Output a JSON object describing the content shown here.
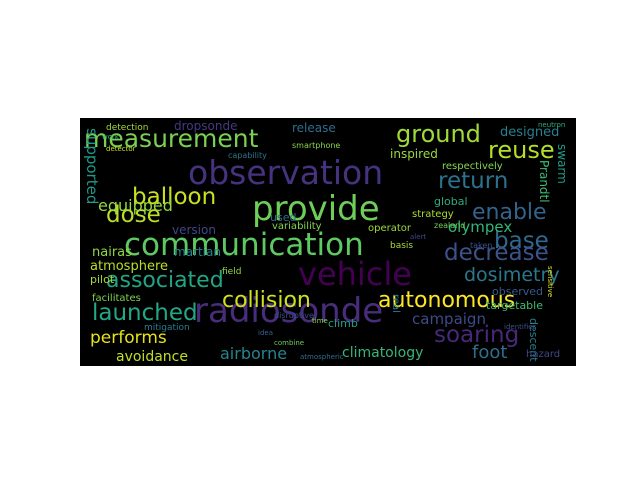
{
  "figure": {
    "background": "#000000",
    "words": [
      {
        "text": "measurement",
        "color": "#7ad151"
      },
      {
        "text": "observation",
        "color": "#46327e"
      },
      {
        "text": "provide",
        "color": "#6ece58"
      },
      {
        "text": "communication",
        "color": "#5ec962"
      },
      {
        "text": "vehicle",
        "color": "#440154"
      },
      {
        "text": "radiosonde",
        "color": "#472d7b"
      },
      {
        "text": "ground",
        "color": "#a0da39"
      },
      {
        "text": "reuse",
        "color": "#b5de2b"
      },
      {
        "text": "return",
        "color": "#2c728e"
      },
      {
        "text": "enable",
        "color": "#33638d"
      },
      {
        "text": "balloon",
        "color": "#c8e020"
      },
      {
        "text": "dose",
        "color": "#bddf26"
      },
      {
        "text": "base",
        "color": "#31688e"
      },
      {
        "text": "decrease",
        "color": "#3b528b"
      },
      {
        "text": "associated",
        "color": "#21a685"
      },
      {
        "text": "dosimetry",
        "color": "#2a788e"
      },
      {
        "text": "autonomous",
        "color": "#fde725"
      },
      {
        "text": "collision",
        "color": "#d0e11c"
      },
      {
        "text": "launched",
        "color": "#22a884"
      },
      {
        "text": "soaring",
        "color": "#482878"
      },
      {
        "text": "campaign",
        "color": "#3e4a89"
      },
      {
        "text": "performs",
        "color": "#e5e419"
      },
      {
        "text": "foot",
        "color": "#2d708e"
      },
      {
        "text": "airborne",
        "color": "#25858e"
      },
      {
        "text": "climatology",
        "color": "#35b779"
      },
      {
        "text": "avoidance",
        "color": "#c2df23"
      },
      {
        "text": "supported",
        "color": "#1f9a8a"
      },
      {
        "text": "equipped",
        "color": "#95d840"
      },
      {
        "text": "atmosphere",
        "color": "#b8de29"
      },
      {
        "text": "olympex",
        "color": "#31b57b"
      },
      {
        "text": "version",
        "color": "#3f4788"
      },
      {
        "text": "martian",
        "color": "#26828e"
      },
      {
        "text": "nairas",
        "color": "#8fd744"
      },
      {
        "text": "pilot",
        "color": "#a5db36"
      },
      {
        "text": "dropsonde",
        "color": "#443983"
      },
      {
        "text": "release",
        "color": "#2e6e8e"
      },
      {
        "text": "designed",
        "color": "#27808e"
      },
      {
        "text": "inspired",
        "color": "#9bd93c"
      },
      {
        "text": "respectively",
        "color": "#86d549"
      },
      {
        "text": "Prandtl",
        "color": "#3dbc74"
      },
      {
        "text": "swarm",
        "color": "#1fa088"
      },
      {
        "text": "global",
        "color": "#29af7f"
      },
      {
        "text": "strategy",
        "color": "#aadc32"
      },
      {
        "text": "used",
        "color": "#2f6c8e"
      },
      {
        "text": "variability",
        "color": "#84d44b"
      },
      {
        "text": "operator",
        "color": "#9dd93b"
      },
      {
        "text": "taken",
        "color": "#3a548c"
      },
      {
        "text": "observed",
        "color": "#38598c"
      },
      {
        "text": "targetable",
        "color": "#40bd72"
      },
      {
        "text": "climb",
        "color": "#1fa187"
      },
      {
        "text": "field",
        "color": "#90d743"
      },
      {
        "text": "facilitates",
        "color": "#7fd34e"
      },
      {
        "text": "mitigation",
        "color": "#287d8e"
      },
      {
        "text": "detection",
        "color": "#a2da37"
      },
      {
        "text": "capability",
        "color": "#2b748e"
      },
      {
        "text": "smartphone",
        "color": "#8bd646"
      },
      {
        "text": "disruptive",
        "color": "#3c4f8a"
      },
      {
        "text": "real",
        "color": "#287c8e"
      },
      {
        "text": "descent",
        "color": "#277f8e"
      },
      {
        "text": "hazard",
        "color": "#404688"
      },
      {
        "text": "atmospheric",
        "color": "#2e6f8e"
      },
      {
        "text": "identifies",
        "color": "#3d4e8a"
      },
      {
        "text": "alert",
        "color": "#414487"
      },
      {
        "text": "basis",
        "color": "#a8db34"
      },
      {
        "text": "zealand",
        "color": "#73d056"
      },
      {
        "text": "combine",
        "color": "#6ccd5a"
      },
      {
        "text": "time",
        "color": "#8bd646"
      },
      {
        "text": "idea",
        "color": "#34618d"
      },
      {
        "text": "work",
        "color": "#3aba76"
      },
      {
        "text": "detector",
        "color": "#cae11f"
      },
      {
        "text": "sensitive",
        "color": "#e1e318"
      },
      {
        "text": "neutron",
        "color": "#2db27d"
      }
    ]
  }
}
